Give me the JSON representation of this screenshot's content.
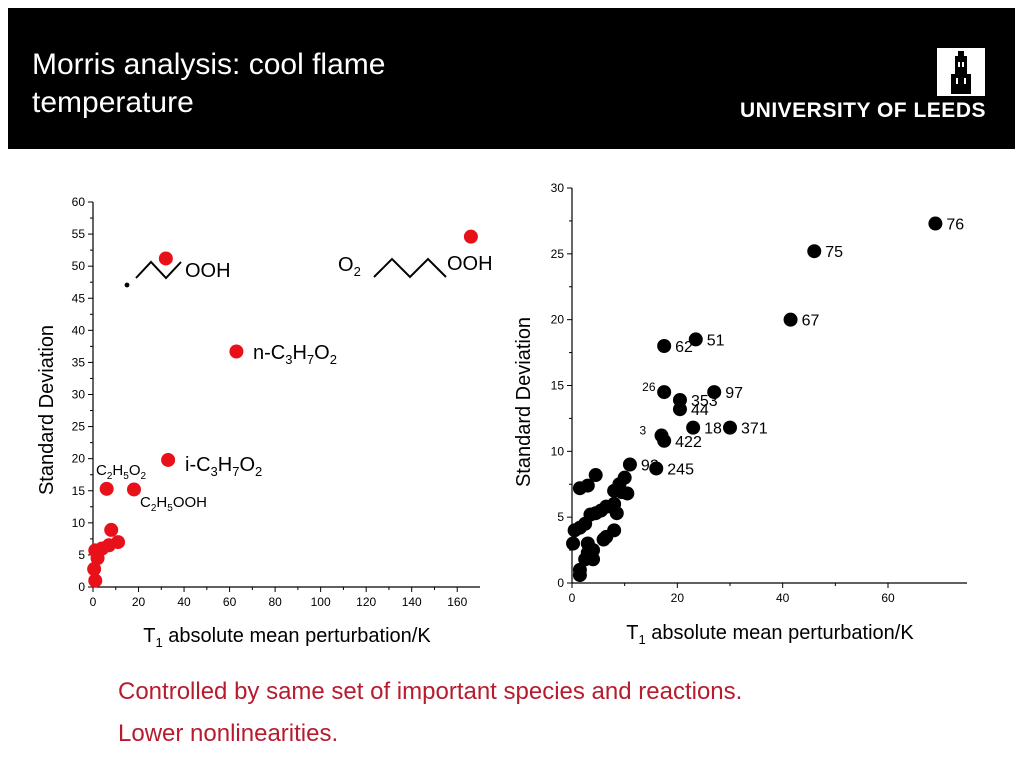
{
  "slide": {
    "title": "Morris analysis: cool flame temperature",
    "brand": "UNIVERSITY OF LEEDS",
    "notes": [
      "Controlled by same set of important species and reactions.",
      "Lower nonlinearities."
    ],
    "colors": {
      "header": "#000000",
      "notes": "#b71c2e",
      "left_points": "#e8111a",
      "right_points": "#000000"
    }
  },
  "chart_data": [
    {
      "type": "scatter",
      "xlabel": "T1 absolute mean perturbation/K",
      "ylabel": "Standard Deviation",
      "xlim": [
        0,
        170
      ],
      "ylim": [
        0,
        60
      ],
      "xticks": [
        0,
        20,
        40,
        60,
        80,
        100,
        120,
        140,
        160
      ],
      "yticks": [
        0,
        5,
        10,
        15,
        20,
        25,
        30,
        35,
        40,
        45,
        50,
        55,
        60
      ],
      "point_color": "#e8111a",
      "points": [
        {
          "x": 32,
          "y": 51.2
        },
        {
          "x": 166,
          "y": 54.6
        },
        {
          "x": 63,
          "y": 36.7
        },
        {
          "x": 33,
          "y": 19.8
        },
        {
          "x": 6,
          "y": 15.3
        },
        {
          "x": 18,
          "y": 15.2
        },
        {
          "x": 8,
          "y": 8.9
        },
        {
          "x": 11,
          "y": 7.0
        },
        {
          "x": 7,
          "y": 6.5
        },
        {
          "x": 4,
          "y": 6.0
        },
        {
          "x": 2,
          "y": 4.5
        },
        {
          "x": 1,
          "y": 5.7
        },
        {
          "x": 0.5,
          "y": 2.8
        },
        {
          "x": 1,
          "y": 1.0
        }
      ],
      "annotations": [
        {
          "text": "OOH"
        },
        {
          "text": "O2"
        },
        {
          "text": "OOH"
        },
        {
          "text": "n-C3H7O2"
        },
        {
          "text": "i-C3H7O2"
        },
        {
          "text": "C2H5O2"
        },
        {
          "text": "C2H5OOH"
        }
      ]
    },
    {
      "type": "scatter",
      "xlabel": "T1 absolute mean perturbation/K",
      "ylabel": "Standard Deviation",
      "xlim": [
        0,
        75
      ],
      "ylim": [
        0,
        30
      ],
      "xticks": [
        0,
        20,
        40,
        60
      ],
      "yticks": [
        0,
        5,
        10,
        15,
        20,
        25,
        30
      ],
      "point_color": "#000000",
      "points": [
        {
          "x": 69,
          "y": 27.3,
          "label": "76"
        },
        {
          "x": 46,
          "y": 25.2,
          "label": "75"
        },
        {
          "x": 41.5,
          "y": 20.0,
          "label": "67"
        },
        {
          "x": 17.5,
          "y": 18.0,
          "label": "62"
        },
        {
          "x": 23.5,
          "y": 18.5,
          "label": "51"
        },
        {
          "x": 17.5,
          "y": 14.5,
          "label": "26"
        },
        {
          "x": 20.5,
          "y": 13.9,
          "label": "353"
        },
        {
          "x": 27,
          "y": 14.5,
          "label": "97"
        },
        {
          "x": 20.5,
          "y": 13.2,
          "label": "44"
        },
        {
          "x": 23,
          "y": 11.8,
          "label": "18"
        },
        {
          "x": 30,
          "y": 11.8,
          "label": "371"
        },
        {
          "x": 17,
          "y": 11.2,
          "label": "3"
        },
        {
          "x": 17.5,
          "y": 10.8,
          "label": "422"
        },
        {
          "x": 16,
          "y": 8.7,
          "label": "245"
        },
        {
          "x": 11,
          "y": 9.0,
          "label": "92"
        },
        {
          "x": 10,
          "y": 8.0
        },
        {
          "x": 9,
          "y": 7.5
        },
        {
          "x": 8,
          "y": 7.0
        },
        {
          "x": 9.5,
          "y": 6.9
        },
        {
          "x": 8,
          "y": 6.0
        },
        {
          "x": 10.5,
          "y": 6.8
        },
        {
          "x": 7.5,
          "y": 5.8
        },
        {
          "x": 8.5,
          "y": 5.3
        },
        {
          "x": 6.5,
          "y": 5.8
        },
        {
          "x": 5.5,
          "y": 5.5
        },
        {
          "x": 4.5,
          "y": 5.3
        },
        {
          "x": 3.5,
          "y": 5.2
        },
        {
          "x": 3.0,
          "y": 7.4
        },
        {
          "x": 1.5,
          "y": 7.2
        },
        {
          "x": 4.5,
          "y": 8.2
        },
        {
          "x": 2.5,
          "y": 4.5
        },
        {
          "x": 1.5,
          "y": 4.2
        },
        {
          "x": 0.5,
          "y": 4.0
        },
        {
          "x": 0.2,
          "y": 3.0
        },
        {
          "x": 6.5,
          "y": 3.5
        },
        {
          "x": 6.0,
          "y": 3.3
        },
        {
          "x": 3.0,
          "y": 3.0
        },
        {
          "x": 4.0,
          "y": 2.5
        },
        {
          "x": 3.0,
          "y": 2.3
        },
        {
          "x": 4.0,
          "y": 1.8
        },
        {
          "x": 2.5,
          "y": 1.8
        },
        {
          "x": 1.5,
          "y": 1.0
        },
        {
          "x": 1.5,
          "y": 0.6
        },
        {
          "x": 8,
          "y": 4.0
        }
      ]
    }
  ]
}
